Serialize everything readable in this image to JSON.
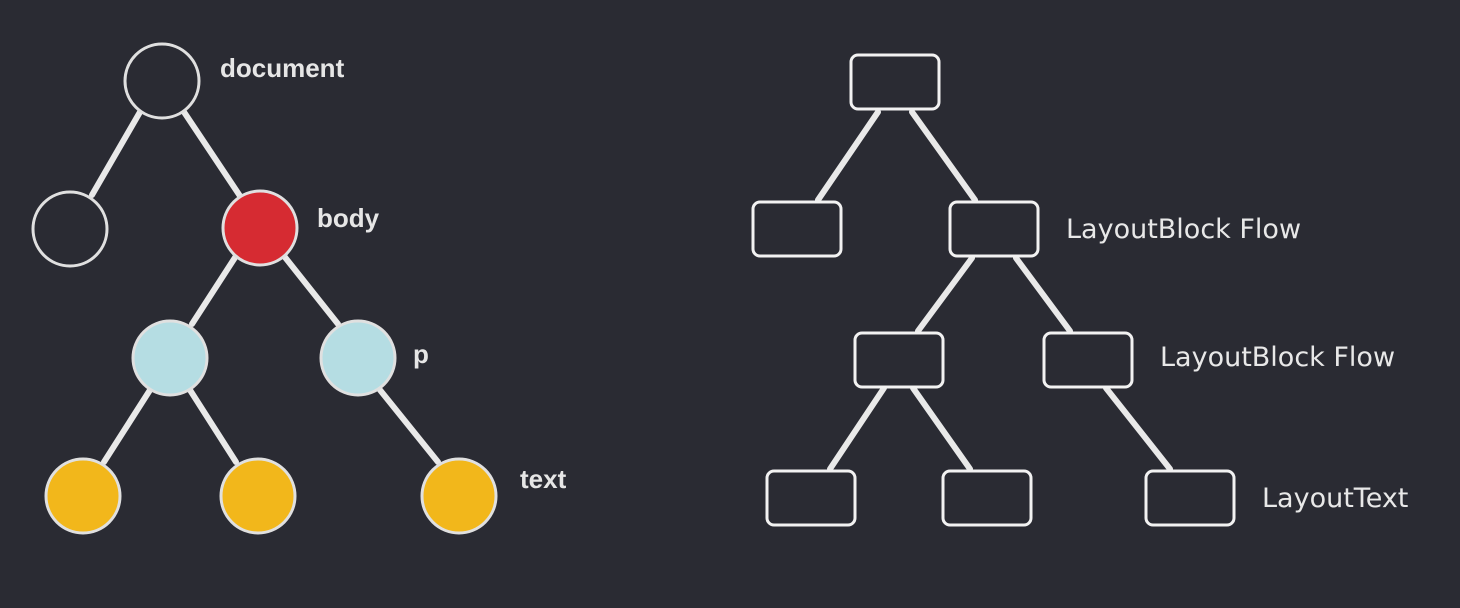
{
  "colors": {
    "background": "#2a2b33",
    "edge": "#e9e9e9",
    "empty_node_fill": "#2a2b33",
    "body_node_fill": "#d62b32",
    "element_node_fill": "#b5dde3",
    "text_node_fill": "#f2b71b",
    "node_outline": "#e0e0e0",
    "box_outline": "#f2f2f2"
  },
  "dom_tree": {
    "labels": {
      "document": "document",
      "body": "body",
      "p": "p",
      "text": "text"
    },
    "nodes": [
      {
        "id": "document",
        "parent": null,
        "kind": "empty"
      },
      {
        "id": "head",
        "parent": "document",
        "kind": "empty"
      },
      {
        "id": "body",
        "parent": "document",
        "kind": "body"
      },
      {
        "id": "element-1",
        "parent": "body",
        "kind": "element"
      },
      {
        "id": "p",
        "parent": "body",
        "kind": "element"
      },
      {
        "id": "text-1",
        "parent": "element-1",
        "kind": "text"
      },
      {
        "id": "text-2",
        "parent": "element-1",
        "kind": "text"
      },
      {
        "id": "text-3",
        "parent": "p",
        "kind": "text"
      }
    ]
  },
  "layout_tree": {
    "labels": {
      "level1": "LayoutBlock Flow",
      "level2": "LayoutBlock Flow",
      "level3": "LayoutText"
    },
    "nodes": [
      {
        "id": "root",
        "parent": null
      },
      {
        "id": "left",
        "parent": "root"
      },
      {
        "id": "block-flow",
        "parent": "root"
      },
      {
        "id": "block-a",
        "parent": "block-flow"
      },
      {
        "id": "block-b",
        "parent": "block-flow"
      },
      {
        "id": "leaf-1",
        "parent": "block-a"
      },
      {
        "id": "leaf-2",
        "parent": "block-a"
      },
      {
        "id": "layout-text",
        "parent": "block-b"
      }
    ]
  }
}
